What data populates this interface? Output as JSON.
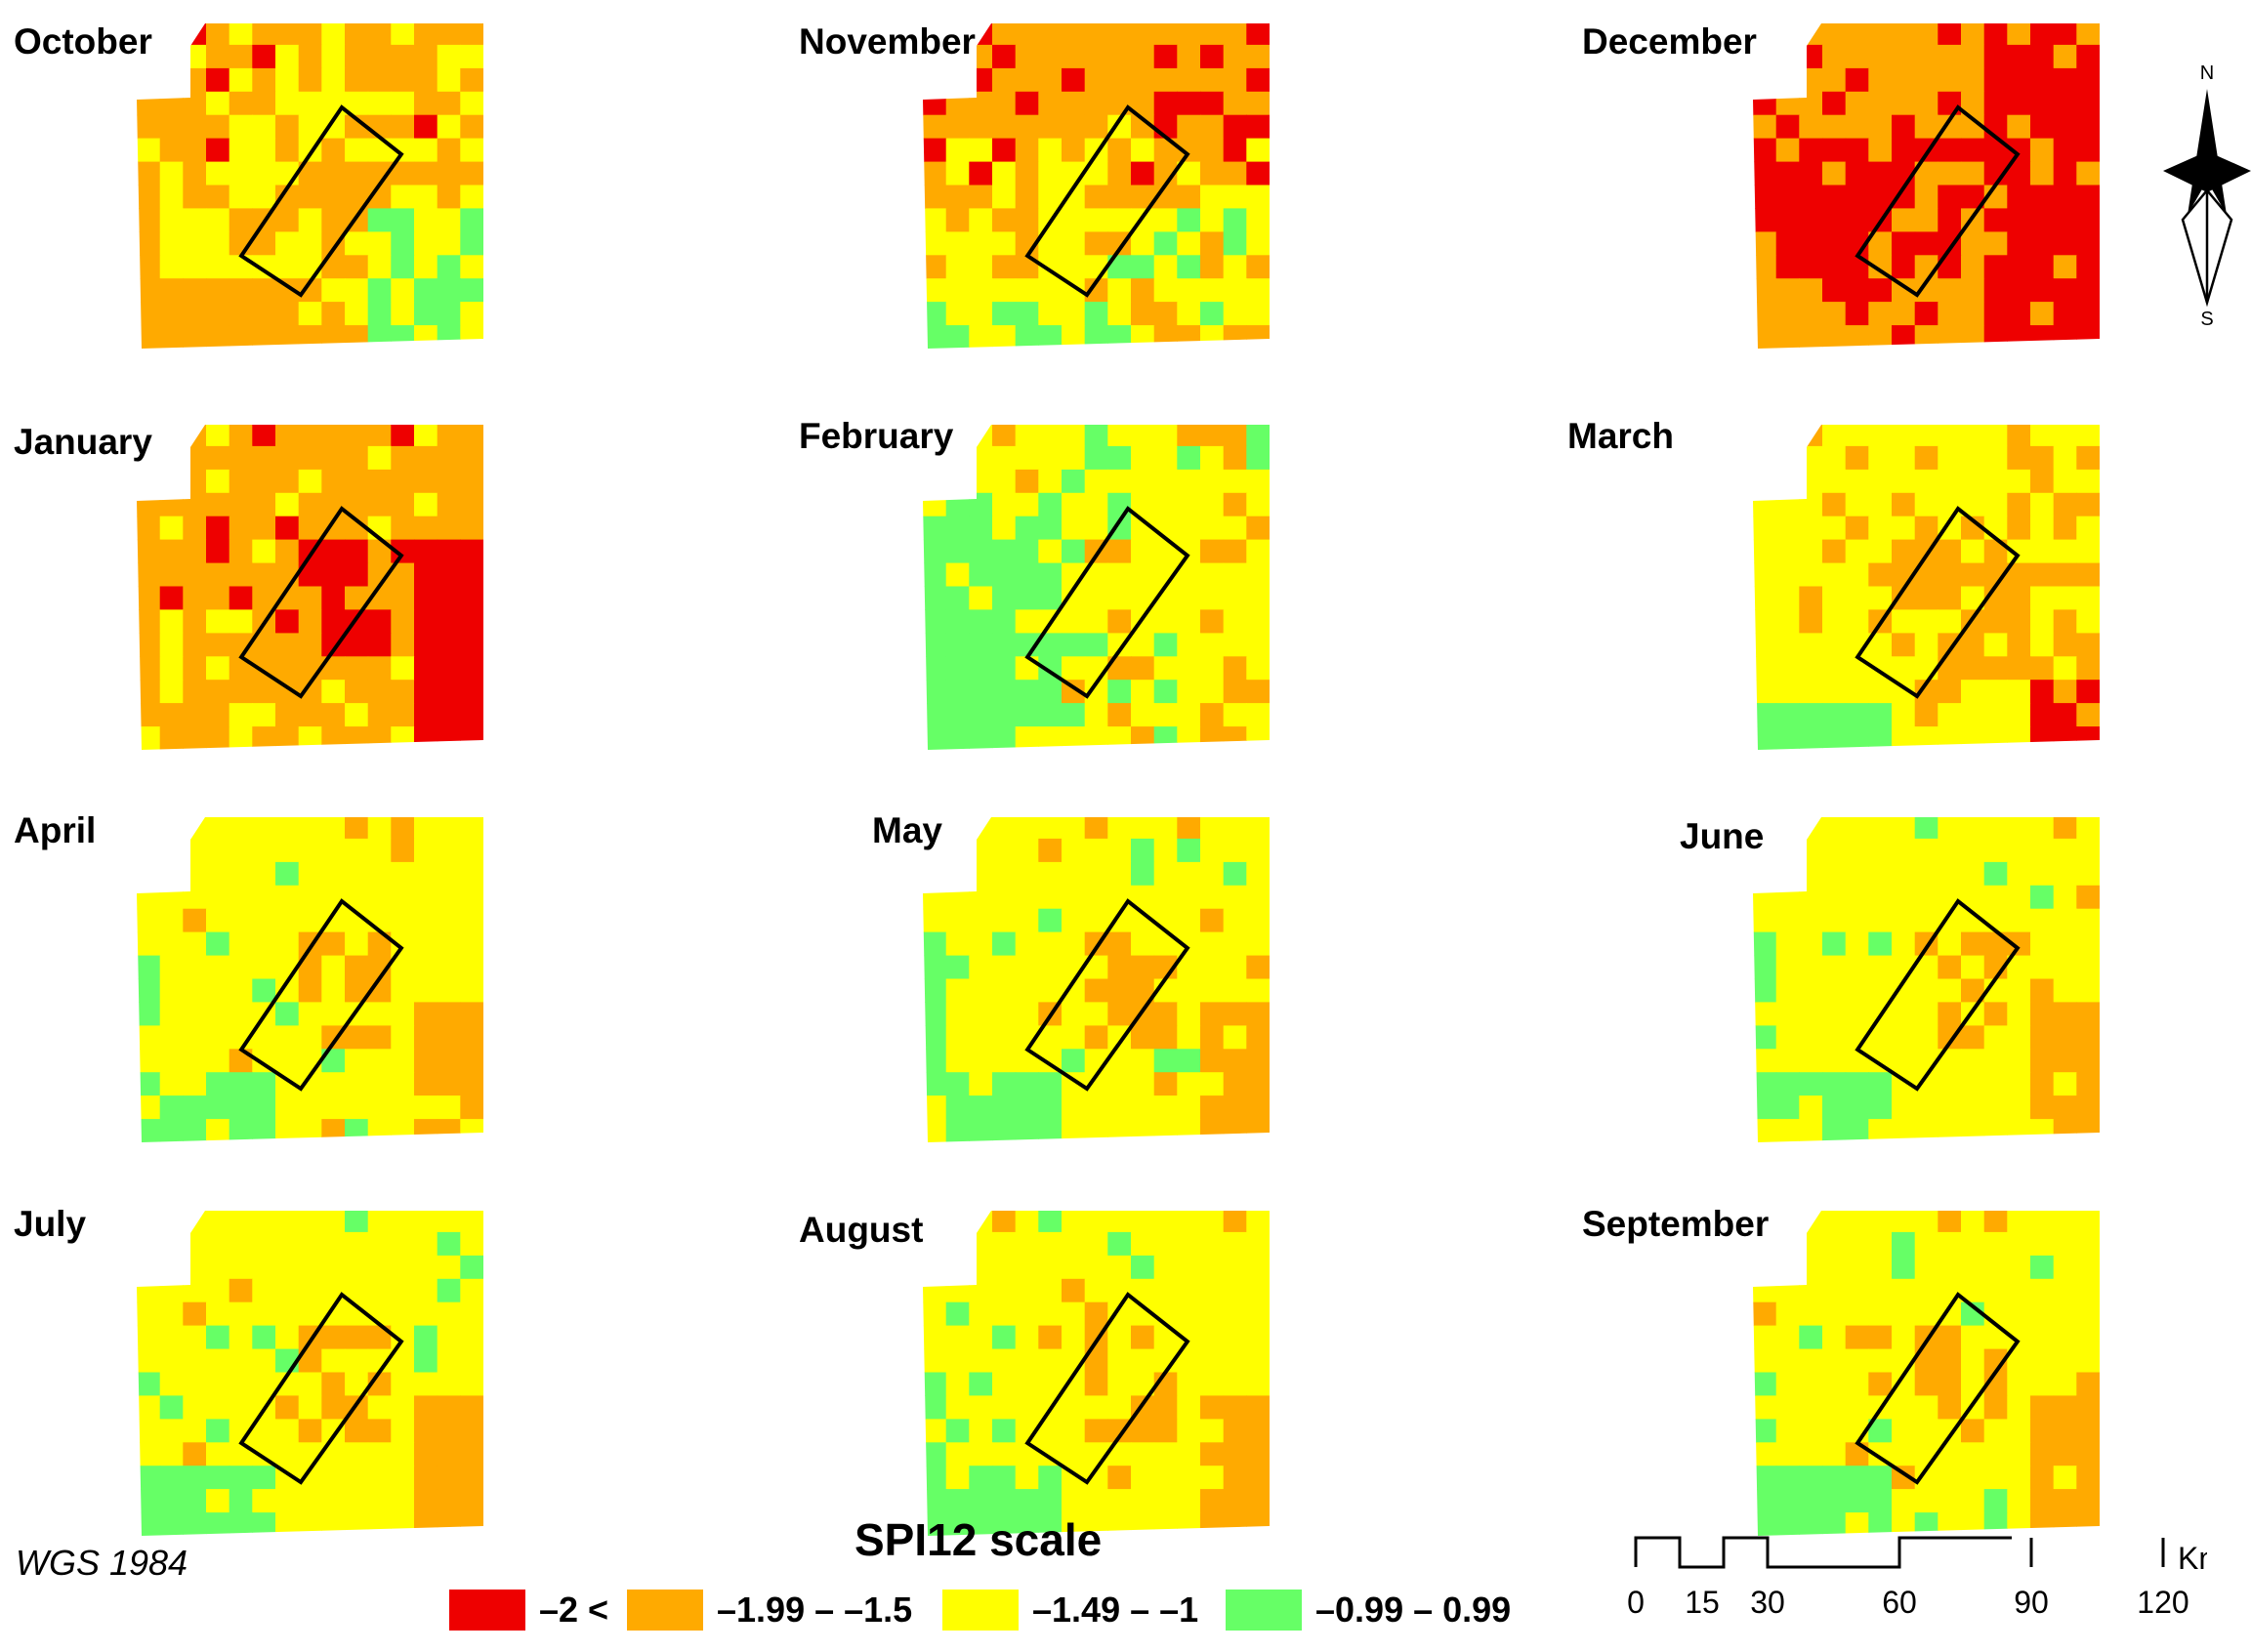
{
  "colors": {
    "class_red": "#ee0000",
    "class_orange": "#ffaa00",
    "class_yellow": "#ffff00",
    "class_green": "#66ff66"
  },
  "maps": [
    {
      "month": "October"
    },
    {
      "month": "November"
    },
    {
      "month": "December"
    },
    {
      "month": "January"
    },
    {
      "month": "February"
    },
    {
      "month": "March"
    },
    {
      "month": "April"
    },
    {
      "month": "May"
    },
    {
      "month": "June"
    },
    {
      "month": "July"
    },
    {
      "month": "August"
    },
    {
      "month": "September"
    }
  ],
  "legend": {
    "title": "SPI12 scale",
    "classes": [
      {
        "label": "–2 <",
        "color": "#ee0000"
      },
      {
        "label": "–1.99 – –1.5",
        "color": "#ffaa00"
      },
      {
        "label": "–1.49 – –1",
        "color": "#ffff00"
      },
      {
        "label": "–0.99 – 0.99",
        "color": "#66ff66"
      }
    ]
  },
  "datum": "WGS 1984",
  "north_arrow": {
    "north": "N",
    "south": "S",
    "icon": "north-arrow-icon"
  },
  "scale_bar": {
    "ticks": [
      "0",
      "15",
      "30",
      "60",
      "90",
      "120"
    ],
    "unit": "Km"
  }
}
